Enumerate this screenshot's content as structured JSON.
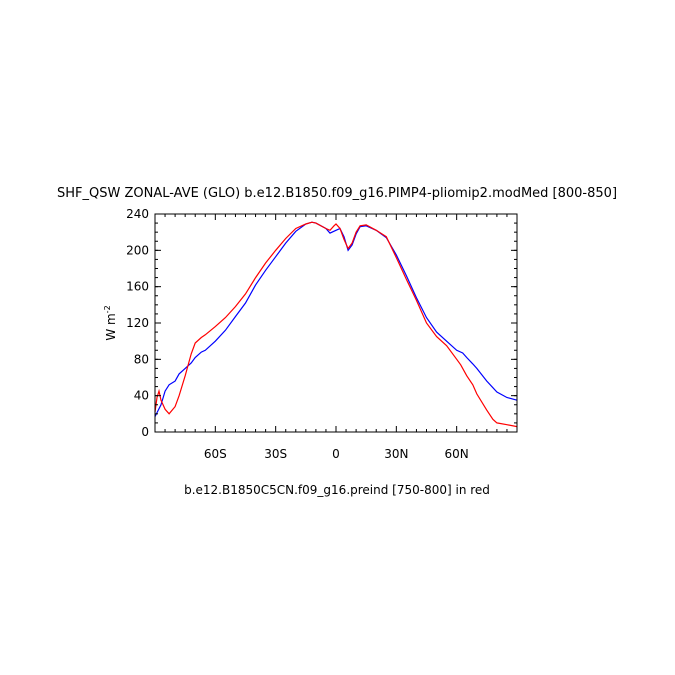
{
  "chart_data": {
    "type": "line",
    "title": "SHF_QSW ZONAL-AVE (GLO) b.e12.B1850.f09_g16.PIMP4-pliomip2.modMed [800-850]",
    "ylabel": "W m",
    "ylabel_superscript": "-2",
    "footer": "b.e12.B1850C5CN.f09_g16.preind [750-800] in red",
    "xlim": [
      -90,
      90
    ],
    "ylim": [
      0,
      240
    ],
    "x_ticks": [
      {
        "value": -60,
        "label": "60S"
      },
      {
        "value": -30,
        "label": "30S"
      },
      {
        "value": 0,
        "label": "0"
      },
      {
        "value": 30,
        "label": "30N"
      },
      {
        "value": 60,
        "label": "60N"
      }
    ],
    "y_ticks": [
      {
        "value": 0,
        "label": "0"
      },
      {
        "value": 40,
        "label": "40"
      },
      {
        "value": 80,
        "label": "80"
      },
      {
        "value": 120,
        "label": "120"
      },
      {
        "value": 160,
        "label": "160"
      },
      {
        "value": 200,
        "label": "200"
      },
      {
        "value": 240,
        "label": "240"
      }
    ],
    "grid": false,
    "series": [
      {
        "color": "#0000ff",
        "x": [
          -90,
          -87,
          -85,
          -83,
          -80,
          -78,
          -75,
          -72,
          -70,
          -67,
          -65,
          -60,
          -55,
          -50,
          -45,
          -40,
          -35,
          -30,
          -25,
          -20,
          -15,
          -12,
          -10,
          -5,
          -3,
          0,
          2,
          4,
          6,
          8,
          10,
          12,
          15,
          20,
          25,
          30,
          35,
          40,
          45,
          50,
          55,
          60,
          63,
          65,
          68,
          70,
          75,
          80,
          85,
          90
        ],
        "values": [
          17,
          30,
          45,
          52,
          56,
          64,
          70,
          76,
          82,
          88,
          90,
          100,
          112,
          127,
          142,
          162,
          178,
          193,
          208,
          221,
          229,
          231,
          230,
          224,
          219,
          222,
          224,
          215,
          200,
          206,
          218,
          226,
          227,
          222,
          214,
          195,
          172,
          148,
          126,
          110,
          100,
          90,
          87,
          82,
          75,
          70,
          56,
          44,
          38,
          35
        ]
      },
      {
        "color": "#ff0000",
        "x": [
          -90,
          -89,
          -88,
          -87,
          -85,
          -83,
          -80,
          -78,
          -75,
          -72,
          -70,
          -67,
          -65,
          -60,
          -55,
          -50,
          -45,
          -40,
          -35,
          -30,
          -25,
          -20,
          -15,
          -12,
          -10,
          -5,
          -3,
          -1,
          0,
          2,
          4,
          6,
          8,
          10,
          12,
          15,
          20,
          25,
          30,
          35,
          40,
          45,
          50,
          55,
          60,
          62,
          65,
          68,
          70,
          75,
          78,
          80,
          85,
          90
        ],
        "values": [
          22,
          38,
          45,
          35,
          25,
          20,
          28,
          40,
          62,
          86,
          98,
          104,
          107,
          116,
          126,
          138,
          152,
          170,
          186,
          200,
          213,
          224,
          229,
          231,
          230,
          224,
          222,
          227,
          229,
          224,
          212,
          202,
          208,
          220,
          227,
          228,
          222,
          215,
          192,
          168,
          145,
          120,
          105,
          95,
          80,
          74,
          62,
          52,
          42,
          24,
          14,
          10,
          8,
          6
        ]
      }
    ]
  }
}
